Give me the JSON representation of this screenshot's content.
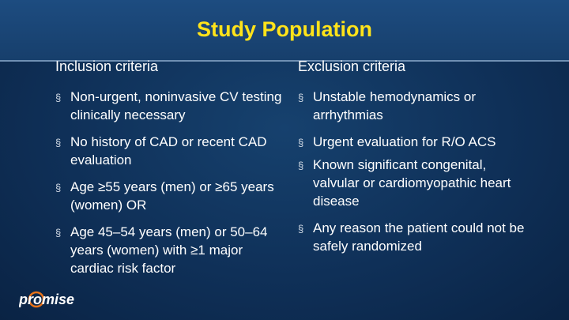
{
  "title": "Study Population",
  "inclusion": {
    "header": "Inclusion criteria",
    "items": [
      "Non-urgent, noninvasive CV testing clinically necessary",
      "No history of CAD or recent CAD evaluation",
      "Age ≥55 years (men) or ≥65 years (women)  OR",
      "Age 45–54 years (men) or 50–64 years (women) with ≥1 major cardiac risk factor"
    ]
  },
  "exclusion": {
    "header": "Exclusion criteria",
    "items": [
      "Unstable hemodynamics or arrhythmias",
      "Urgent evaluation for R/O ACS",
      "Known significant congenital, valvular or cardiomyopathic heart disease",
      "Any reason the patient could not be safely randomized"
    ]
  },
  "bullet_glyph": "§",
  "logo": {
    "text": "promise",
    "accent_color": "#e8731a"
  },
  "colors": {
    "title": "#ffe31a",
    "background": "#0f3058",
    "text": "#ffffff"
  }
}
